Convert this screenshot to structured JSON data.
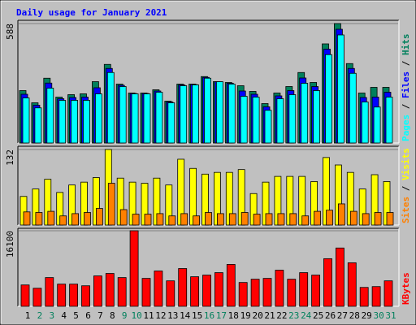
{
  "chart_data": [
    {
      "type": "bar",
      "title": "Daily usage for January 2021",
      "legend_separator": " / ",
      "ylim": [
        0,
        588
      ],
      "yticks": [
        588
      ],
      "series": [
        {
          "name": "Hits",
          "color": "#00805c",
          "values": [
            258,
            198,
            319,
            226,
            238,
            242,
            302,
            387,
            290,
            246,
            246,
            262,
            206,
            290,
            290,
            327,
            302,
            298,
            282,
            254,
            194,
            246,
            278,
            347,
            298,
            488,
            588,
            391,
            246,
            274,
            274
          ]
        },
        {
          "name": "Files",
          "color": "#0000ff",
          "values": [
            240,
            186,
            295,
            218,
            224,
            226,
            272,
            367,
            284,
            244,
            244,
            256,
            202,
            286,
            288,
            323,
            302,
            294,
            256,
            240,
            178,
            232,
            258,
            320,
            278,
            462,
            560,
            367,
            224,
            226,
            250
          ]
        },
        {
          "name": "Pages",
          "color": "#00ffff",
          "values": [
            222,
            173,
            270,
            210,
            210,
            210,
            242,
            347,
            278,
            242,
            242,
            250,
            198,
            282,
            286,
            319,
            302,
            290,
            230,
            226,
            161,
            218,
            238,
            294,
            258,
            435,
            532,
            343,
            202,
            177,
            226
          ]
        }
      ]
    },
    {
      "type": "bar",
      "ylim": [
        0,
        132
      ],
      "yticks": [
        132
      ],
      "series": [
        {
          "name": "Visits",
          "color": "#ffff00",
          "values": [
            50,
            63,
            80,
            57,
            70,
            75,
            83,
            132,
            82,
            75,
            73,
            82,
            70,
            115,
            99,
            89,
            92,
            92,
            97,
            55,
            75,
            85,
            85,
            85,
            76,
            118,
            105,
            92,
            63,
            88,
            76
          ]
        },
        {
          "name": "Sites",
          "color": "#ff8000",
          "values": [
            23,
            22,
            24,
            16,
            20,
            22,
            29,
            73,
            27,
            19,
            19,
            20,
            16,
            20,
            16,
            22,
            20,
            20,
            22,
            19,
            20,
            20,
            20,
            16,
            24,
            26,
            37,
            24,
            20,
            22,
            22
          ]
        }
      ]
    },
    {
      "type": "bar",
      "ylim": [
        0,
        16100
      ],
      "yticks": [
        16100
      ],
      "categories": [
        "1",
        "2",
        "3",
        "4",
        "5",
        "6",
        "7",
        "8",
        "9",
        "10",
        "11",
        "12",
        "13",
        "14",
        "15",
        "16",
        "17",
        "18",
        "19",
        "20",
        "21",
        "22",
        "23",
        "24",
        "25",
        "26",
        "27",
        "28",
        "29",
        "30",
        "31"
      ],
      "label_colors": [
        "#000000",
        "#00805c",
        "#00805c",
        "#000000",
        "#000000",
        "#000000",
        "#000000",
        "#000000",
        "#00805c",
        "#00805c",
        "#000000",
        "#000000",
        "#000000",
        "#000000",
        "#000000",
        "#00805c",
        "#00805c",
        "#000000",
        "#000000",
        "#000000",
        "#000000",
        "#000000",
        "#00805c",
        "#00805c",
        "#000000",
        "#000000",
        "#000000",
        "#000000",
        "#000000",
        "#00805c",
        "#00805c"
      ],
      "series": [
        {
          "name": "KBytes",
          "color": "#ff0000",
          "values": [
            4550,
            3850,
            6125,
            4725,
            4725,
            4375,
            6475,
            7000,
            6125,
            16100,
            5950,
            7525,
            5425,
            8050,
            6300,
            6650,
            7175,
            8925,
            5075,
            5775,
            5950,
            7700,
            5775,
            7175,
            6650,
            10150,
            12425,
            9275,
            4025,
            4200,
            5425
          ]
        }
      ]
    }
  ]
}
